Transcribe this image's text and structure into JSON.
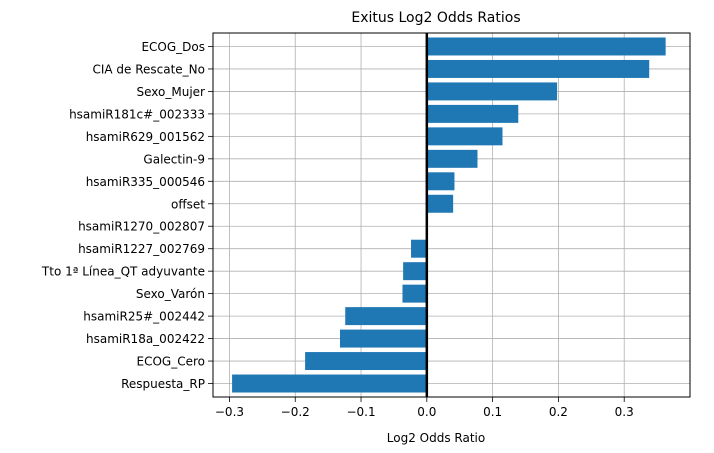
{
  "chart_data": {
    "type": "bar",
    "orientation": "horizontal",
    "title": "Exitus Log2 Odds Ratios",
    "xlabel": "Log2 Odds Ratio",
    "ylabel": "",
    "xlim": [
      -0.325,
      0.4
    ],
    "xticks": [
      -0.3,
      -0.2,
      -0.1,
      0.0,
      0.1,
      0.2,
      0.3
    ],
    "xtick_labels": [
      "−0.3",
      "−0.2",
      "−0.1",
      "0.0",
      "0.1",
      "0.2",
      "0.3"
    ],
    "grid": true,
    "zero_line": true,
    "bar_color": "#1f77b4",
    "categories": [
      "ECOG_Dos",
      "CIA de Rescate_No",
      "Sexo_Mujer",
      "hsamiR181c#_002333",
      "hsamiR629_001562",
      "Galectin-9",
      "hsamiR335_000546",
      "offset",
      "hsamiR1270_002807",
      "hsamiR1227_002769",
      "Tto 1ª Línea_QT adyuvante",
      "Sexo_Varón",
      "hsamiR25#_002442",
      "hsamiR18a_002422",
      "ECOG_Cero",
      "Respuesta_RP"
    ],
    "values": [
      0.363,
      0.338,
      0.198,
      0.139,
      0.115,
      0.077,
      0.042,
      0.04,
      0.0,
      -0.024,
      -0.036,
      -0.037,
      -0.124,
      -0.132,
      -0.185,
      -0.296
    ]
  }
}
